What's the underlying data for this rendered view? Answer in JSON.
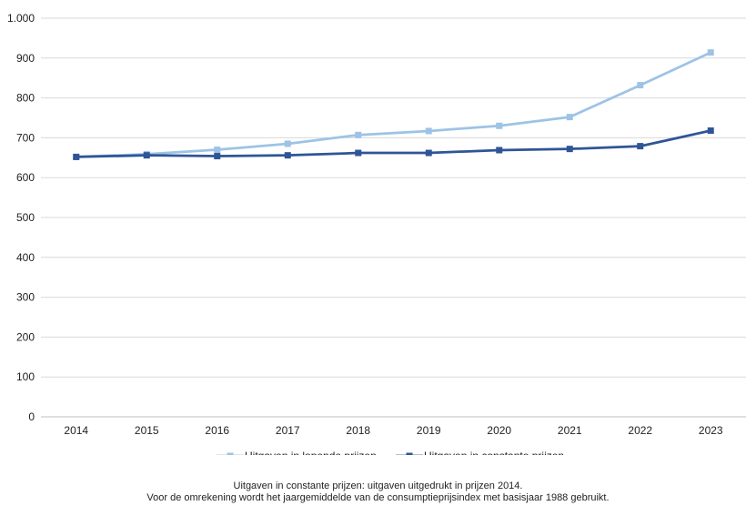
{
  "chart_data": {
    "type": "line",
    "title": "",
    "xlabel": "",
    "ylabel": "",
    "categories": [
      "2014",
      "2015",
      "2016",
      "2017",
      "2018",
      "2019",
      "2020",
      "2021",
      "2022",
      "2023"
    ],
    "ylim": [
      0,
      1000
    ],
    "yticks": [
      0,
      100,
      200,
      300,
      400,
      500,
      600,
      700,
      800,
      900,
      1000
    ],
    "ytick_labels": [
      "0",
      "100",
      "200",
      "300",
      "400",
      "500",
      "600",
      "700",
      "800",
      "900",
      "1.000"
    ],
    "grid": true,
    "legend_position": "bottom",
    "series": [
      {
        "name": "Uitgaven in lopende prijzen",
        "color": "#9dc3e6",
        "values": [
          652,
          659,
          670,
          685,
          707,
          717,
          730,
          752,
          832,
          914
        ]
      },
      {
        "name": "Uitgaven in constante prijzen",
        "color": "#2f5597",
        "values": [
          652,
          656,
          654,
          656,
          662,
          662,
          669,
          672,
          679,
          718
        ]
      }
    ]
  },
  "footnote": {
    "line1": "Uitgaven in constante prijzen: uitgaven uitgedrukt in prijzen 2014.",
    "line2": "Voor de omrekening wordt het jaargemiddelde van de consumptieprijsindex met basisjaar 1988 gebruikt."
  }
}
